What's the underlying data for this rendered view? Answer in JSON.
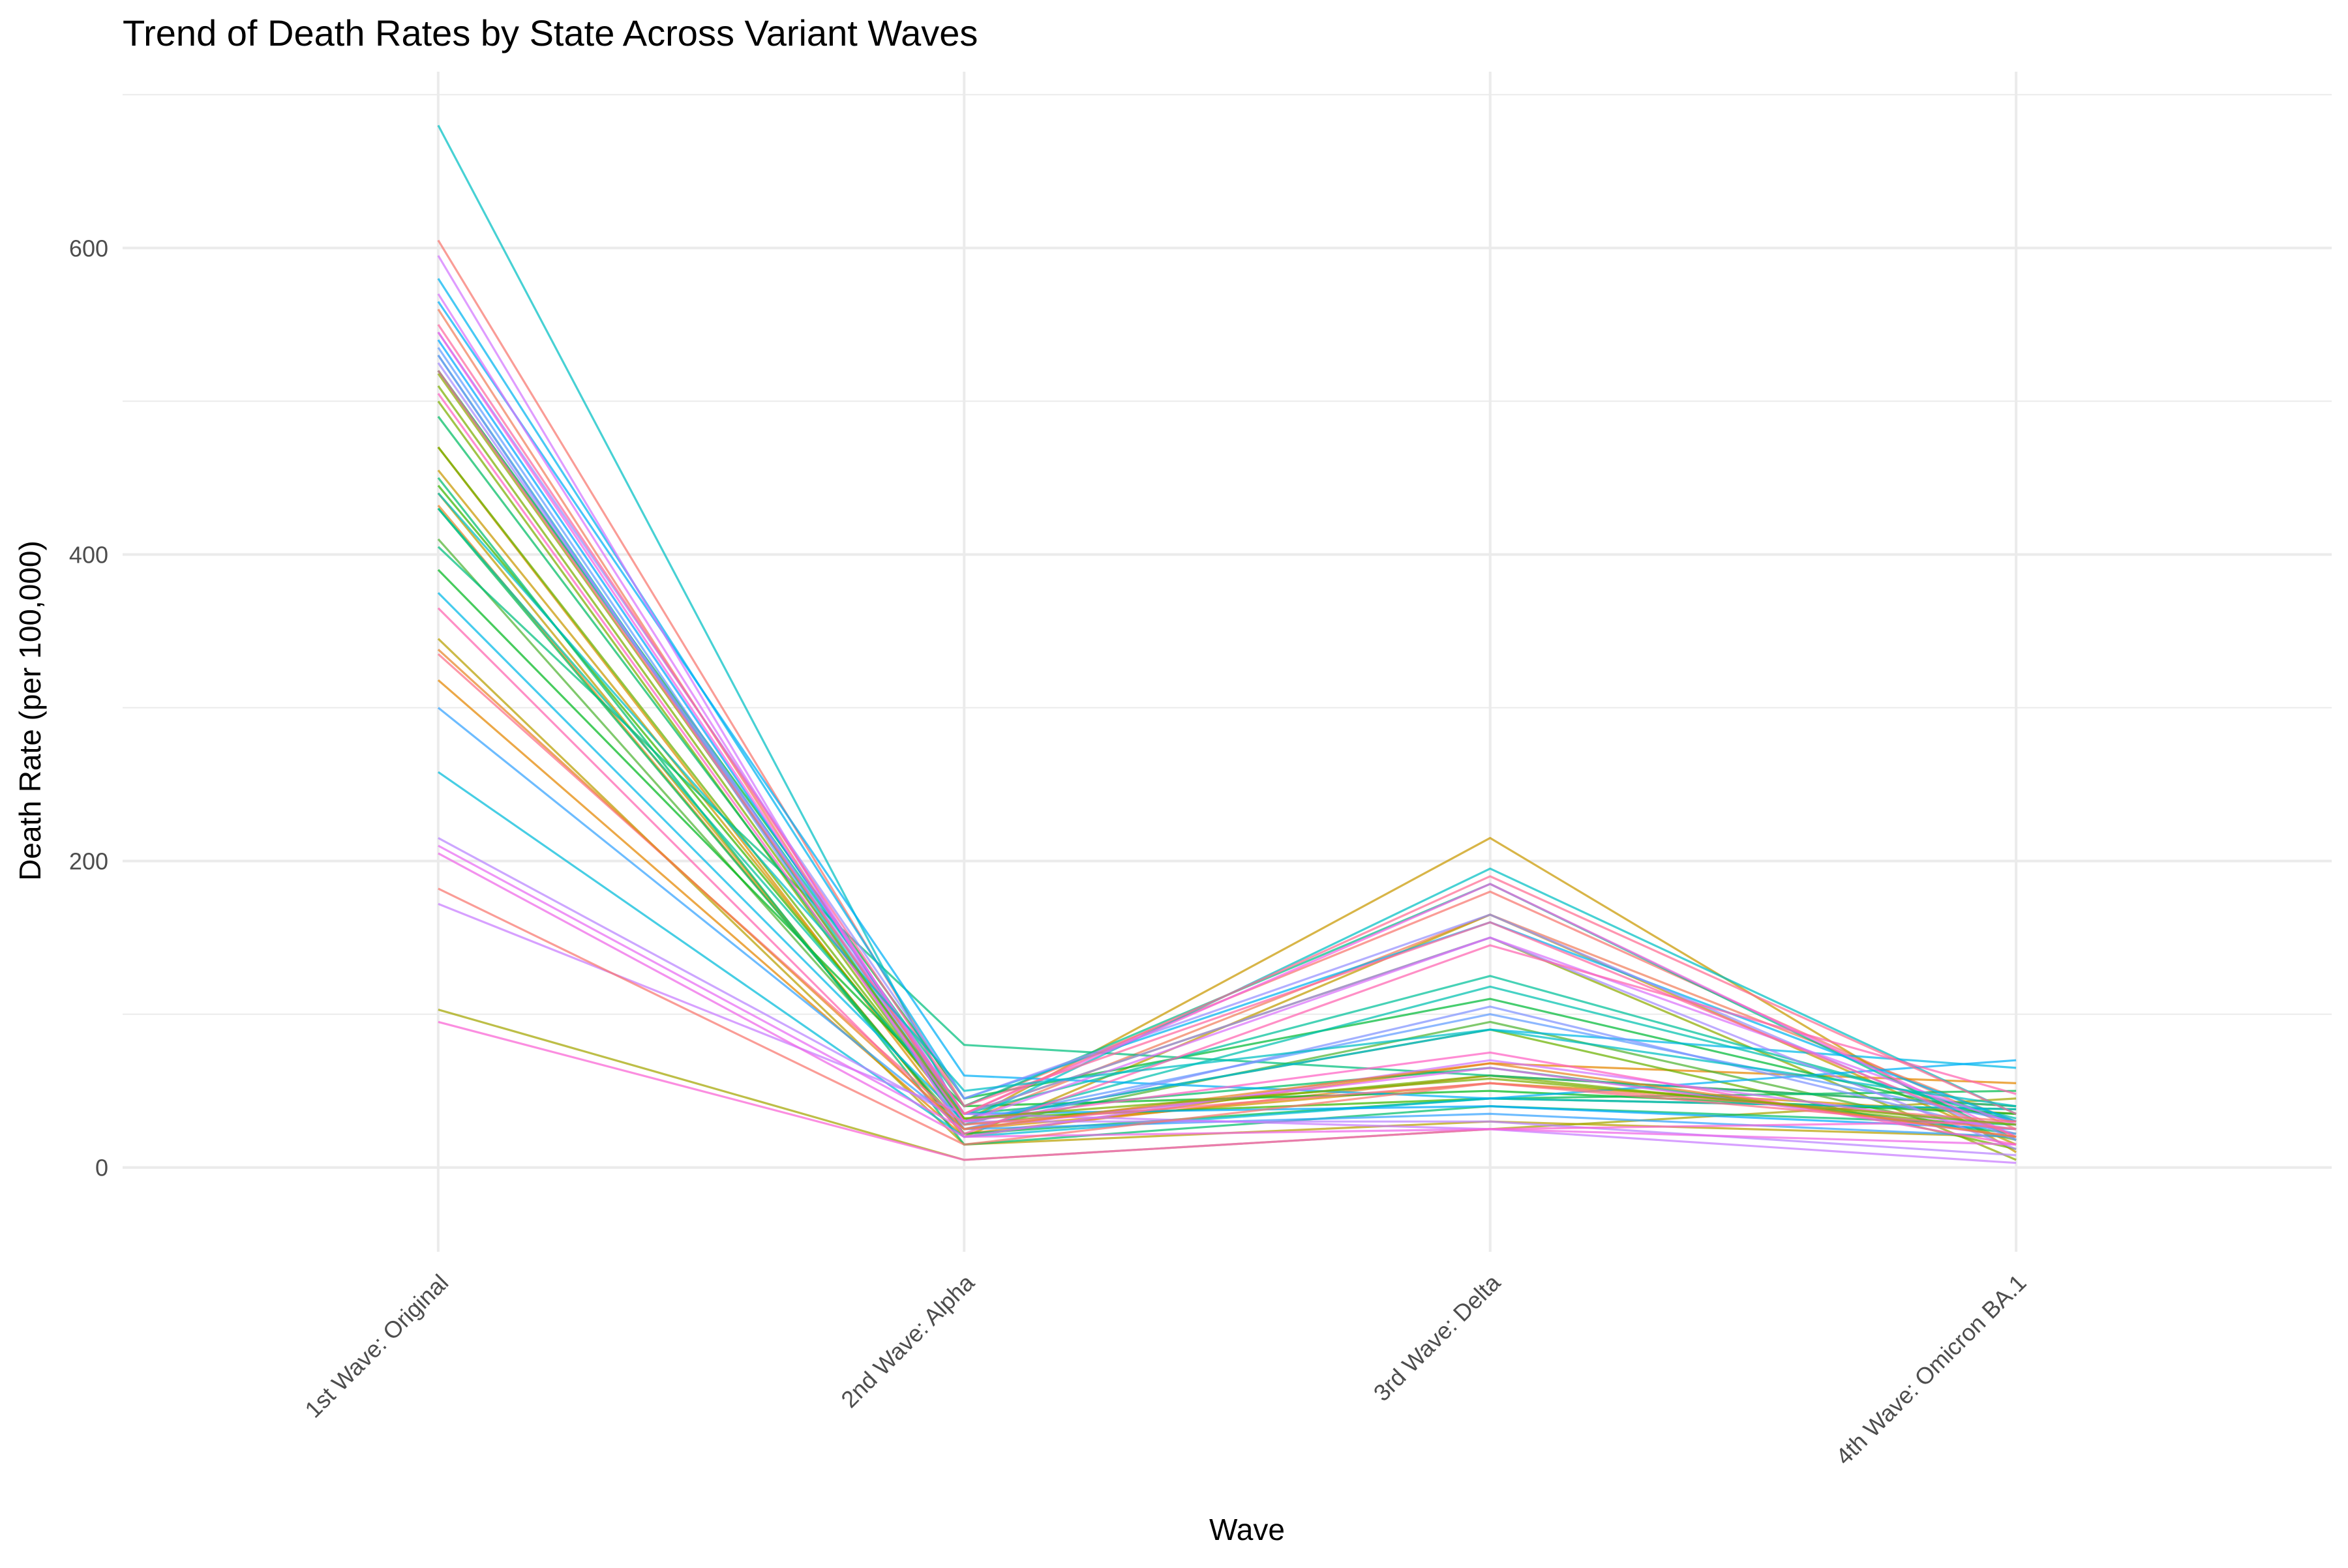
{
  "chart_data": {
    "type": "line",
    "title": "Trend of Death Rates by State Across Variant Waves",
    "xlabel": "Wave",
    "ylabel": "Death Rate (per 100,000)",
    "categories": [
      "1st Wave: Original",
      "2nd Wave: Alpha",
      "3rd Wave: Delta",
      "4th Wave: Omicron BA.1"
    ],
    "ylim": [
      -55,
      715
    ],
    "y_ticks": [
      0,
      200,
      400,
      600
    ],
    "y_tick_labels": [
      "0",
      "200",
      "400",
      "600"
    ],
    "grid": true,
    "legend": "none",
    "series": [
      {
        "color": "#F8766D",
        "values": [
          605,
          40,
          180,
          25
        ]
      },
      {
        "color": "#F17E5C",
        "values": [
          560,
          30,
          165,
          30
        ]
      },
      {
        "color": "#E88526",
        "values": [
          432,
          22,
          60,
          40
        ]
      },
      {
        "color": "#E58700",
        "values": [
          318,
          20,
          68,
          55
        ]
      },
      {
        "color": "#D89000",
        "values": [
          470,
          25,
          55,
          35
        ]
      },
      {
        "color": "#C99800",
        "values": [
          455,
          30,
          215,
          10
        ]
      },
      {
        "color": "#C09B00",
        "values": [
          440,
          20,
          165,
          15
        ]
      },
      {
        "color": "#B9A000",
        "values": [
          345,
          15,
          30,
          20
        ]
      },
      {
        "color": "#A3A500",
        "values": [
          103,
          5,
          25,
          45
        ]
      },
      {
        "color": "#8FAA00",
        "values": [
          518,
          35,
          150,
          5
        ]
      },
      {
        "color": "#7CAE00",
        "values": [
          500,
          28,
          60,
          25
        ]
      },
      {
        "color": "#6BB100",
        "values": [
          470,
          30,
          90,
          12
        ]
      },
      {
        "color": "#4FB433",
        "values": [
          410,
          25,
          95,
          18
        ]
      },
      {
        "color": "#39B600",
        "values": [
          445,
          32,
          45,
          38
        ]
      },
      {
        "color": "#00B81F",
        "values": [
          390,
          40,
          50,
          35
        ]
      },
      {
        "color": "#00BA38",
        "values": [
          520,
          45,
          110,
          30
        ]
      },
      {
        "color": "#00BB4E",
        "values": [
          430,
          22,
          45,
          50
        ]
      },
      {
        "color": "#00BC62",
        "values": [
          490,
          35,
          65,
          22
        ]
      },
      {
        "color": "#00BE6C",
        "values": [
          450,
          15,
          40,
          28
        ]
      },
      {
        "color": "#00BF7D",
        "values": [
          405,
          80,
          60,
          40
        ]
      },
      {
        "color": "#00C08B",
        "values": [
          520,
          40,
          185,
          18
        ]
      },
      {
        "color": "#00C19A",
        "values": [
          430,
          35,
          125,
          30
        ]
      },
      {
        "color": "#00C0AF",
        "values": [
          530,
          28,
          118,
          32
        ]
      },
      {
        "color": "#00BFC4",
        "values": [
          680,
          30,
          195,
          35
        ]
      },
      {
        "color": "#00BBDA",
        "values": [
          258,
          20,
          45,
          38
        ]
      },
      {
        "color": "#00B8E7",
        "values": [
          375,
          30,
          90,
          65
        ]
      },
      {
        "color": "#00B4F0",
        "values": [
          580,
          45,
          160,
          30
        ]
      },
      {
        "color": "#00B0F6",
        "values": [
          565,
          60,
          45,
          70
        ]
      },
      {
        "color": "#00A9FF",
        "values": [
          540,
          35,
          40,
          25
        ]
      },
      {
        "color": "#35A2FF",
        "values": [
          300,
          25,
          35,
          20
        ]
      },
      {
        "color": "#619CFF",
        "values": [
          535,
          30,
          100,
          30
        ]
      },
      {
        "color": "#8093FF",
        "values": [
          530,
          25,
          105,
          22
        ]
      },
      {
        "color": "#9590FF",
        "values": [
          545,
          45,
          165,
          18
        ]
      },
      {
        "color": "#A58AFF",
        "values": [
          525,
          35,
          150,
          12
        ]
      },
      {
        "color": "#B983FF",
        "values": [
          215,
          30,
          30,
          8
        ]
      },
      {
        "color": "#C77CFF",
        "values": [
          172,
          35,
          25,
          3
        ]
      },
      {
        "color": "#D376FF",
        "values": [
          595,
          20,
          70,
          25
        ]
      },
      {
        "color": "#DB72FB",
        "values": [
          570,
          30,
          150,
          28
        ]
      },
      {
        "color": "#E76BF3",
        "values": [
          210,
          25,
          65,
          20
        ]
      },
      {
        "color": "#EE67E8",
        "values": [
          205,
          20,
          25,
          15
        ]
      },
      {
        "color": "#F564E3",
        "values": [
          545,
          35,
          185,
          20
        ]
      },
      {
        "color": "#FA62D4",
        "values": [
          95,
          5,
          25,
          30
        ]
      },
      {
        "color": "#FF61C3",
        "values": [
          505,
          30,
          75,
          15
        ]
      },
      {
        "color": "#FF64B0",
        "values": [
          365,
          22,
          145,
          48
        ]
      },
      {
        "color": "#FF689F",
        "values": [
          550,
          40,
          160,
          20
        ]
      },
      {
        "color": "#FF6C91",
        "values": [
          520,
          35,
          190,
          35
        ]
      },
      {
        "color": "#FD6F86",
        "values": [
          335,
          28,
          55,
          25
        ]
      },
      {
        "color": "#F8766D",
        "values": [
          182,
          15,
          55,
          30
        ]
      },
      {
        "color": "#E88526",
        "values": [
          338,
          25,
          68,
          20
        ]
      },
      {
        "color": "#00BFC4",
        "values": [
          440,
          50,
          90,
          40
        ]
      },
      {
        "color": "#7CAE00",
        "values": [
          510,
          32,
          58,
          28
        ]
      }
    ]
  }
}
